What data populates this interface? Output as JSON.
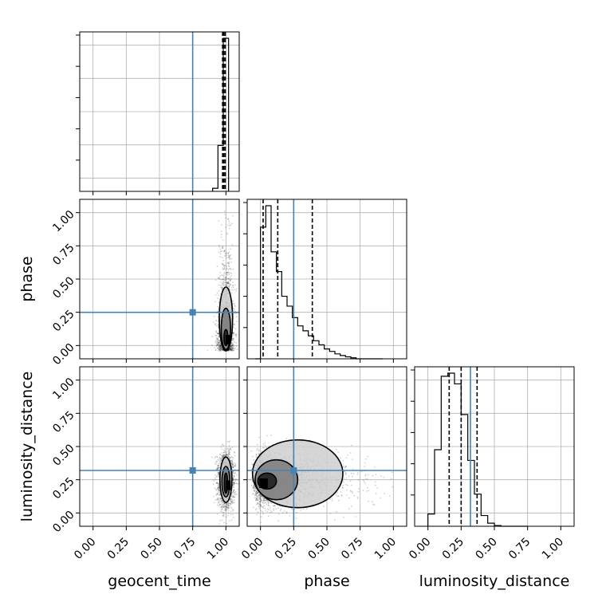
{
  "chart_data": {
    "type": "corner",
    "parameters": [
      "geocent_time",
      "phase",
      "luminosity_distance"
    ],
    "axis_label_x": [
      "geocent_time",
      "phase",
      "luminosity_distance"
    ],
    "axis_label_y": [
      "phase",
      "luminosity_distance"
    ],
    "axis_range": [
      -0.1,
      1.1
    ],
    "ticks": [
      0.0,
      0.25,
      0.5,
      0.75,
      1.0
    ],
    "tick_labels": [
      "0.00",
      "0.25",
      "0.50",
      "0.75",
      "1.00"
    ],
    "grid": true,
    "truths": [
      0.75,
      0.25,
      0.32
    ],
    "truth_color": "#4682b4",
    "hist_color": "#000000",
    "histograms": [
      {
        "parameter": "geocent_time",
        "bin_edges": [
          0.9,
          0.94,
          0.98,
          1.02
        ],
        "counts": [
          0.02,
          0.3,
          1.0
        ],
        "quantiles": [
          0.975,
          0.985,
          0.995
        ]
      },
      {
        "parameter": "phase",
        "bin_edges": [
          -0.04,
          0.0,
          0.04,
          0.08,
          0.12,
          0.16,
          0.2,
          0.24,
          0.28,
          0.32,
          0.36,
          0.4,
          0.44,
          0.48,
          0.52,
          0.56,
          0.6,
          0.64,
          0.68,
          0.72,
          0.76,
          0.8,
          0.84,
          0.88,
          0.92
        ],
        "counts": [
          0.0,
          0.8,
          0.93,
          0.65,
          0.53,
          0.38,
          0.32,
          0.25,
          0.2,
          0.17,
          0.14,
          0.11,
          0.085,
          0.06,
          0.045,
          0.03,
          0.02,
          0.012,
          0.006,
          0.0,
          0.0,
          0.0,
          0.0,
          0.0
        ],
        "quantiles": [
          0.02,
          0.13,
          0.39
        ]
      },
      {
        "parameter": "luminosity_distance",
        "bin_edges": [
          0.0,
          0.05,
          0.1,
          0.15,
          0.2,
          0.25,
          0.3,
          0.35,
          0.4,
          0.45,
          0.5,
          0.55,
          0.6,
          0.65,
          0.7,
          0.75
        ],
        "counts": [
          0.08,
          0.5,
          0.98,
          1.0,
          0.93,
          0.73,
          0.43,
          0.21,
          0.07,
          0.02,
          0.005,
          0.0,
          0.0,
          0.0,
          0.0
        ],
        "quantiles": [
          0.16,
          0.25,
          0.37
        ]
      }
    ],
    "pairs": [
      {
        "x": "geocent_time",
        "y": "phase",
        "x_center": 1.0,
        "x_sigma": 0.025,
        "y_scale": 0.22,
        "y_skew": "positive",
        "y_max": 1.02,
        "contour_x_halfwidths": [
          0.015,
          0.035,
          0.05
        ],
        "contour_y_ranges": [
          [
            0.0,
            0.12
          ],
          [
            -0.03,
            0.28
          ],
          [
            -0.04,
            0.44
          ]
        ]
      },
      {
        "x": "geocent_time",
        "y": "luminosity_distance",
        "x_center": 1.0,
        "x_sigma": 0.025,
        "y_center": 0.25,
        "y_sigma": 0.1,
        "y_max": 0.55,
        "contour_x_halfwidths": [
          0.012,
          0.03,
          0.045
        ],
        "contour_y_ranges": [
          [
            0.15,
            0.3
          ],
          [
            0.12,
            0.35
          ],
          [
            0.08,
            0.42
          ]
        ]
      },
      {
        "x": "phase",
        "y": "luminosity_distance",
        "x_scale": 0.2,
        "x_skew": "positive",
        "y_center": 0.25,
        "y_sigma": 0.1,
        "contour_x_ranges": [
          [
            -0.02,
            0.12
          ],
          [
            -0.04,
            0.28
          ],
          [
            -0.06,
            0.62
          ]
        ],
        "contour_y_ranges": [
          [
            0.18,
            0.3
          ],
          [
            0.1,
            0.4
          ],
          [
            0.04,
            0.55
          ]
        ]
      }
    ]
  }
}
